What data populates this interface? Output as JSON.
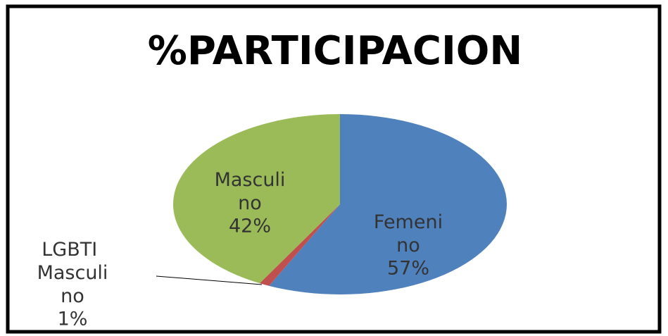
{
  "chart_data": {
    "type": "pie",
    "title": "%PARTICIPACION",
    "categories": [
      "Femenino",
      "LGBTI Masculino",
      "Masculino"
    ],
    "values": [
      57,
      1,
      42
    ],
    "value_labels": [
      "57%",
      "1%",
      "42%"
    ],
    "colors": [
      "#4f81bd",
      "#c0504d",
      "#9bbb59"
    ]
  }
}
